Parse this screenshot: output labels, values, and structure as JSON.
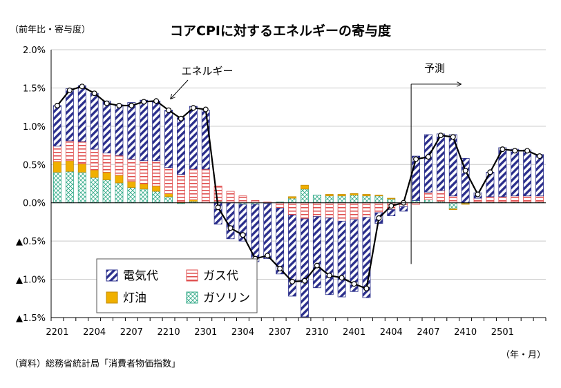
{
  "header": {
    "title": "コアCPIに対するエネルギーの寄与度",
    "unit_label": "（前年比・寄与度）"
  },
  "footer": {
    "source": "（資料）総務省統計局「消費者物価指数」",
    "x_unit": "（年・月）"
  },
  "colors": {
    "electricity": "#2b2f8c",
    "gas": "#e05050",
    "kerosene": "#f0b000",
    "gasoline": "#33aa88",
    "line": "#000000"
  },
  "chart_data": {
    "type": "bar",
    "title": "コアCPIに対するエネルギーの寄与度",
    "ylabel": "前年比・寄与度",
    "xlabel": "年・月",
    "ylim": [
      -1.5,
      2.0
    ],
    "yticks": [
      2.0,
      1.5,
      1.0,
      0.5,
      0.0,
      -0.5,
      -1.0,
      -1.5
    ],
    "ytick_labels": [
      "2.0%",
      "1.5%",
      "1.0%",
      "0.5%",
      "0.0%",
      "▲0.5%",
      "▲1.0%",
      "▲1.5%"
    ],
    "categories": [
      "2201",
      "2202",
      "2203",
      "2204",
      "2205",
      "2206",
      "2207",
      "2208",
      "2209",
      "2210",
      "2211",
      "2212",
      "2301",
      "2302",
      "2303",
      "2304",
      "2305",
      "2306",
      "2307",
      "2308",
      "2309",
      "2310",
      "2311",
      "2312",
      "2401",
      "2402",
      "2403",
      "2404",
      "2405",
      "2406",
      "2407",
      "2408",
      "2409",
      "2410",
      "2411",
      "2412",
      "2501",
      "2502",
      "2503",
      "2504"
    ],
    "xtick_labels": [
      "2201",
      "2204",
      "2207",
      "2210",
      "2301",
      "2304",
      "2307",
      "2310",
      "2401",
      "2404",
      "2407",
      "2410",
      "2501"
    ],
    "series": [
      {
        "name": "ガソリン",
        "key": "gasoline",
        "values": [
          0.4,
          0.41,
          0.4,
          0.33,
          0.3,
          0.26,
          0.2,
          0.18,
          0.15,
          0.08,
          -0.01,
          0.02,
          0.0,
          0.02,
          0.0,
          -0.02,
          -0.02,
          -0.01,
          0.01,
          0.06,
          0.18,
          0.1,
          0.09,
          0.09,
          0.1,
          0.09,
          0.09,
          0.05,
          0.0,
          0.03,
          0.04,
          0.02,
          -0.08,
          -0.01,
          0.01,
          0.01,
          0.01,
          0.01,
          0.01,
          0.01
        ]
      },
      {
        "name": "灯油",
        "key": "kerosene",
        "values": [
          0.14,
          0.14,
          0.11,
          0.1,
          0.1,
          0.1,
          0.08,
          0.07,
          0.07,
          0.04,
          0.01,
          0.02,
          0.0,
          0.0,
          0.0,
          0.0,
          0.0,
          0.0,
          0.0,
          0.02,
          0.05,
          0.0,
          0.02,
          0.02,
          0.02,
          0.02,
          0.01,
          0.01,
          0.0,
          0.0,
          0.0,
          0.0,
          -0.01,
          -0.01,
          0.0,
          0.0,
          0.0,
          0.0,
          0.0,
          0.0
        ]
      },
      {
        "name": "ガス代",
        "key": "gas",
        "values": [
          0.2,
          0.26,
          0.29,
          0.27,
          0.25,
          0.26,
          0.29,
          0.3,
          0.33,
          0.34,
          0.36,
          0.4,
          0.44,
          0.2,
          0.15,
          0.09,
          0.03,
          0.01,
          -0.07,
          -0.16,
          -0.21,
          -0.18,
          -0.2,
          -0.24,
          -0.22,
          -0.19,
          -0.13,
          -0.09,
          -0.05,
          -0.02,
          0.1,
          0.14,
          0.09,
          0.0,
          0.05,
          0.07,
          0.07,
          0.08,
          0.08,
          0.08
        ]
      },
      {
        "name": "電気代",
        "key": "electricity",
        "values": [
          0.53,
          0.68,
          0.73,
          0.73,
          0.68,
          0.66,
          0.74,
          0.79,
          0.78,
          0.75,
          0.74,
          0.82,
          0.77,
          -0.28,
          -0.47,
          -0.48,
          -0.75,
          -0.72,
          -0.86,
          -1.06,
          -1.28,
          -0.93,
          -1.0,
          -0.99,
          -0.94,
          -1.05,
          -0.14,
          -0.08,
          -0.06,
          0.58,
          0.75,
          0.74,
          0.8,
          0.58,
          0.07,
          0.32,
          0.64,
          0.61,
          0.6,
          0.54
        ]
      }
    ],
    "energy_total": [
      1.27,
      1.47,
      1.52,
      1.43,
      1.3,
      1.27,
      1.27,
      1.32,
      1.33,
      1.21,
      1.1,
      1.24,
      1.22,
      -0.06,
      -0.33,
      -0.42,
      -0.73,
      -0.69,
      -0.86,
      -1.03,
      -1.02,
      -0.82,
      -0.95,
      -0.98,
      -1.06,
      -1.12,
      -0.2,
      -0.04,
      0.0,
      0.57,
      0.6,
      0.88,
      0.86,
      0.42,
      0.11,
      0.4,
      0.7,
      0.68,
      0.68,
      0.61
    ],
    "line_label": "エネルギー",
    "forecast_label": "予測",
    "forecast_start": "2406",
    "legend": [
      {
        "key": "electricity",
        "label": "電気代"
      },
      {
        "key": "gas",
        "label": "ガス代"
      },
      {
        "key": "kerosene",
        "label": "灯油"
      },
      {
        "key": "gasoline",
        "label": "ガソリン"
      }
    ]
  }
}
